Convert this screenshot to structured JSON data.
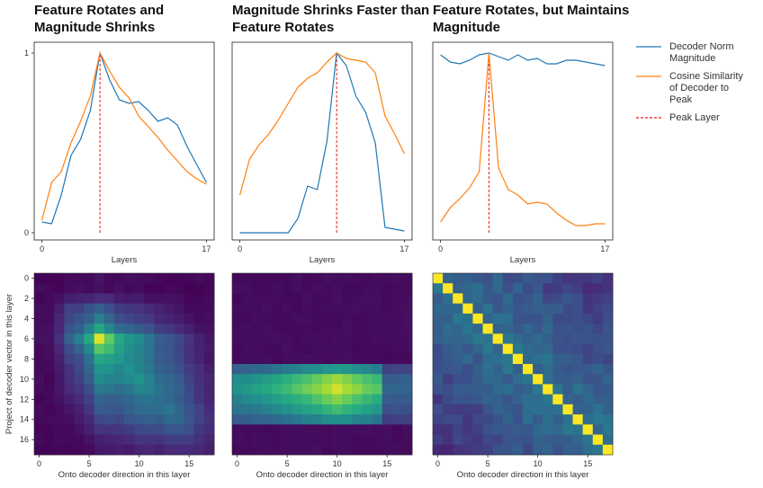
{
  "titles": [
    "Feature Rotates and Magnitude Shrinks",
    "Magnitude Shrinks Faster than Feature Rotates",
    "Feature Rotates, but Maintains Magnitude"
  ],
  "legend": {
    "items": [
      {
        "label_lines": [
          "Decoder Norm",
          "Magnitude"
        ],
        "color": "#1f77b4",
        "style": "solid"
      },
      {
        "label_lines": [
          "Cosine Similarity",
          "of Decoder to",
          "Peak"
        ],
        "color": "#ff7f0e",
        "style": "solid"
      },
      {
        "label_lines": [
          "Peak Layer"
        ],
        "color": "#e41a1c",
        "style": "dashed"
      }
    ]
  },
  "colors": {
    "blue": "#1f77b4",
    "orange": "#ff7f0e",
    "peak": "#e41a1c"
  },
  "chart_data": [
    {
      "type": "line",
      "title": "Feature Rotates and Magnitude Shrinks",
      "xlabel": "Layers",
      "x": [
        0,
        1,
        2,
        3,
        4,
        5,
        6,
        7,
        8,
        9,
        10,
        11,
        12,
        13,
        14,
        15,
        16,
        17
      ],
      "xticks": [
        0,
        17
      ],
      "yticks": [
        0,
        1
      ],
      "xlim": [
        -0.8,
        17.8
      ],
      "ylim": [
        -0.04,
        1.06
      ],
      "peak_layer": 6,
      "series": [
        {
          "name": "Decoder Norm Magnitude",
          "color": "#1f77b4",
          "values": [
            0.06,
            0.05,
            0.21,
            0.43,
            0.52,
            0.68,
            1.0,
            0.85,
            0.74,
            0.72,
            0.73,
            0.68,
            0.62,
            0.64,
            0.6,
            0.48,
            0.38,
            0.28
          ]
        },
        {
          "name": "Cosine Similarity of Decoder to Peak",
          "color": "#ff7f0e",
          "values": [
            0.07,
            0.28,
            0.34,
            0.5,
            0.62,
            0.76,
            1.0,
            0.9,
            0.81,
            0.75,
            0.65,
            0.59,
            0.53,
            0.46,
            0.4,
            0.34,
            0.3,
            0.27
          ]
        }
      ]
    },
    {
      "type": "line",
      "title": "Magnitude Shrinks Faster than Feature Rotates",
      "xlabel": "Layers",
      "x": [
        0,
        1,
        2,
        3,
        4,
        5,
        6,
        7,
        8,
        9,
        10,
        11,
        12,
        13,
        14,
        15,
        16,
        17
      ],
      "xticks": [
        0,
        17
      ],
      "yticks": [],
      "xlim": [
        -0.8,
        17.8
      ],
      "ylim": [
        -0.04,
        1.06
      ],
      "peak_layer": 10,
      "series": [
        {
          "name": "Decoder Norm Magnitude",
          "color": "#1f77b4",
          "values": [
            0.0,
            0.0,
            0.0,
            0.0,
            0.0,
            0.0,
            0.08,
            0.26,
            0.24,
            0.51,
            1.0,
            0.93,
            0.76,
            0.67,
            0.5,
            0.03,
            0.02,
            0.01
          ]
        },
        {
          "name": "Cosine Similarity of Decoder to Peak",
          "color": "#ff7f0e",
          "values": [
            0.21,
            0.41,
            0.49,
            0.55,
            0.63,
            0.72,
            0.81,
            0.86,
            0.89,
            0.95,
            1.0,
            0.97,
            0.96,
            0.95,
            0.89,
            0.65,
            0.55,
            0.44
          ]
        }
      ]
    },
    {
      "type": "line",
      "title": "Feature Rotates, but Maintains Magnitude",
      "xlabel": "Layers",
      "x": [
        0,
        1,
        2,
        3,
        4,
        5,
        6,
        7,
        8,
        9,
        10,
        11,
        12,
        13,
        14,
        15,
        16,
        17
      ],
      "xticks": [
        0,
        17
      ],
      "yticks": [],
      "xlim": [
        -0.8,
        17.8
      ],
      "ylim": [
        -0.04,
        1.06
      ],
      "peak_layer": 5,
      "series": [
        {
          "name": "Decoder Norm Magnitude",
          "color": "#1f77b4",
          "values": [
            0.99,
            0.95,
            0.94,
            0.96,
            0.99,
            1.0,
            0.98,
            0.96,
            0.99,
            0.96,
            0.97,
            0.94,
            0.94,
            0.96,
            0.96,
            0.95,
            0.94,
            0.93
          ]
        },
        {
          "name": "Cosine Similarity of Decoder to Peak",
          "color": "#ff7f0e",
          "values": [
            0.06,
            0.14,
            0.19,
            0.25,
            0.34,
            1.0,
            0.36,
            0.24,
            0.21,
            0.16,
            0.17,
            0.16,
            0.11,
            0.07,
            0.04,
            0.04,
            0.05,
            0.05
          ]
        }
      ]
    },
    {
      "type": "heatmap",
      "title": "Feature Rotates and Magnitude Shrinks",
      "ylabel": "Project of decoder vector in this layer",
      "xlabel": "Onto decoder direction in this layer",
      "xticks": [
        0,
        5,
        10,
        15
      ],
      "yticks": [
        0,
        2,
        4,
        6,
        8,
        10,
        12,
        14,
        16
      ],
      "size": 18,
      "pattern": "rotate_shrink",
      "peak": 6
    },
    {
      "type": "heatmap",
      "title": "Magnitude Shrinks Faster than Feature Rotates",
      "xlabel": "Onto decoder direction in this layer",
      "xticks": [
        0,
        5,
        10,
        15
      ],
      "yticks": [],
      "size": 18,
      "pattern": "shrink_fast",
      "peak": 10
    },
    {
      "type": "heatmap",
      "title": "Feature Rotates, but Maintains Magnitude",
      "xlabel": "Onto decoder direction in this layer",
      "xticks": [
        0,
        5,
        10,
        15
      ],
      "yticks": [],
      "size": 18,
      "pattern": "rotate_keep",
      "peak": 5
    }
  ]
}
